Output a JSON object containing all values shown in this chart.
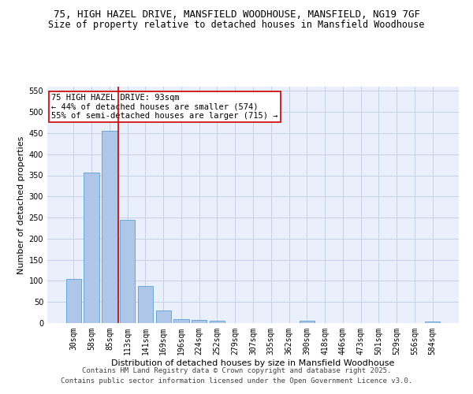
{
  "title": "75, HIGH HAZEL DRIVE, MANSFIELD WOODHOUSE, MANSFIELD, NG19 7GF",
  "subtitle": "Size of property relative to detached houses in Mansfield Woodhouse",
  "xlabel": "Distribution of detached houses by size in Mansfield Woodhouse",
  "ylabel": "Number of detached properties",
  "categories": [
    "30sqm",
    "58sqm",
    "85sqm",
    "113sqm",
    "141sqm",
    "169sqm",
    "196sqm",
    "224sqm",
    "252sqm",
    "279sqm",
    "307sqm",
    "335sqm",
    "362sqm",
    "390sqm",
    "418sqm",
    "446sqm",
    "473sqm",
    "501sqm",
    "529sqm",
    "556sqm",
    "584sqm"
  ],
  "values": [
    105,
    357,
    456,
    245,
    88,
    30,
    10,
    8,
    5,
    0,
    0,
    0,
    0,
    5,
    0,
    0,
    0,
    0,
    0,
    0,
    3
  ],
  "bar_color": "#aec6e8",
  "bar_edge_color": "#5a9fd4",
  "bg_color": "#eaf0fb",
  "grid_color": "#c5cfe8",
  "vline_color": "#cc0000",
  "vline_x_index": 2,
  "annotation_text": "75 HIGH HAZEL DRIVE: 93sqm\n← 44% of detached houses are smaller (574)\n55% of semi-detached houses are larger (715) →",
  "annotation_box_color": "#ffffff",
  "annotation_box_edge": "#cc0000",
  "ylim": [
    0,
    560
  ],
  "yticks": [
    0,
    50,
    100,
    150,
    200,
    250,
    300,
    350,
    400,
    450,
    500,
    550
  ],
  "footer1": "Contains HM Land Registry data © Crown copyright and database right 2025.",
  "footer2": "Contains public sector information licensed under the Open Government Licence v3.0.",
  "title_fontsize": 9,
  "subtitle_fontsize": 8.5,
  "axis_label_fontsize": 8,
  "tick_fontsize": 7,
  "annotation_fontsize": 7.5,
  "footer_fontsize": 6.5
}
